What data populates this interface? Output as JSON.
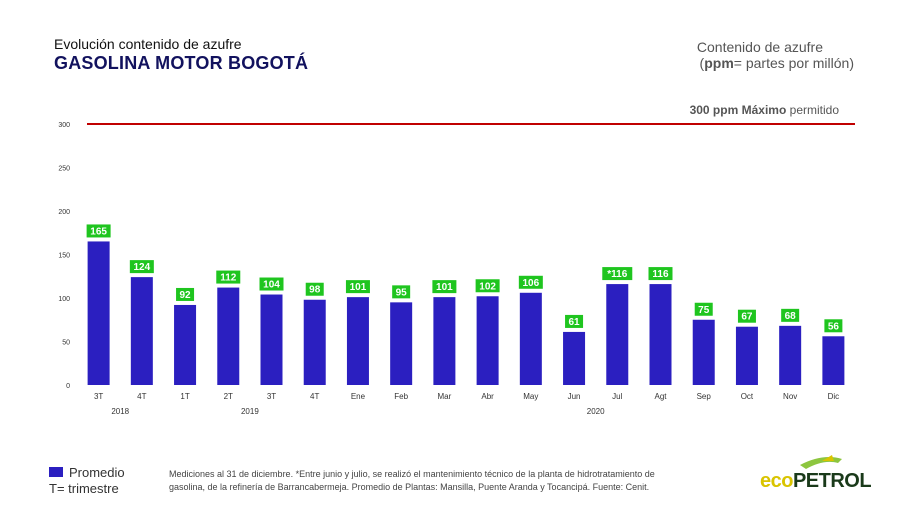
{
  "header": {
    "subtitle": "Evolución contenido de azufre",
    "title": "GASOLINA MOTOR BOGOTÁ",
    "unit_line1": "Contenido de azufre",
    "unit_ppm": "ppm",
    "unit_rest": "= partes por millón)",
    "unit_open": "("
  },
  "max_line": {
    "value_text": "300 ppm",
    "bold_text": "Máximo",
    "rest_text": "permitido",
    "color": "#c00000"
  },
  "chart_data": {
    "type": "bar",
    "categories": [
      "3T",
      "4T",
      "1T",
      "2T",
      "3T",
      "4T",
      "Ene",
      "Feb",
      "Mar",
      "Abr",
      "May",
      "Jun",
      "Jul",
      "Agt",
      "Sep",
      "Oct",
      "Nov",
      "Dic"
    ],
    "values": [
      165,
      124,
      92,
      112,
      104,
      98,
      101,
      95,
      101,
      102,
      106,
      61,
      116,
      116,
      75,
      67,
      68,
      56
    ],
    "data_labels": [
      "165",
      "124",
      "92",
      "112",
      "104",
      "98",
      "101",
      "95",
      "101",
      "102",
      "106",
      "61",
      "*116",
      "116",
      "75",
      "67",
      "68",
      "56"
    ],
    "year_groups": [
      {
        "label": "2018",
        "from": 0,
        "to": 1
      },
      {
        "label": "2019",
        "from": 2,
        "to": 5
      },
      {
        "label": "2020",
        "from": 6,
        "to": 17
      }
    ],
    "y_ticks": [
      0,
      50,
      100,
      150,
      200,
      250,
      300
    ],
    "ylim": [
      0,
      300
    ],
    "reference_line": 300,
    "bar_color": "#2b1fc0",
    "label_bg_color": "#1fc51f",
    "grid": false
  },
  "legend": {
    "series_label": "Promedio",
    "note": "T= trimestre"
  },
  "footnote": "Mediciones al 31 de diciembre. *Entre junio y julio, se realizó el mantenimiento técnico de la planta de hidrotratamiento de gasolina, de la refinería de Barrancabermeja. Promedio de Plantas: Mansilla, Puente Aranda y Tocancipá. Fuente: Cenit.",
  "logo": {
    "eco": "eco",
    "petrol": "PETROL"
  }
}
